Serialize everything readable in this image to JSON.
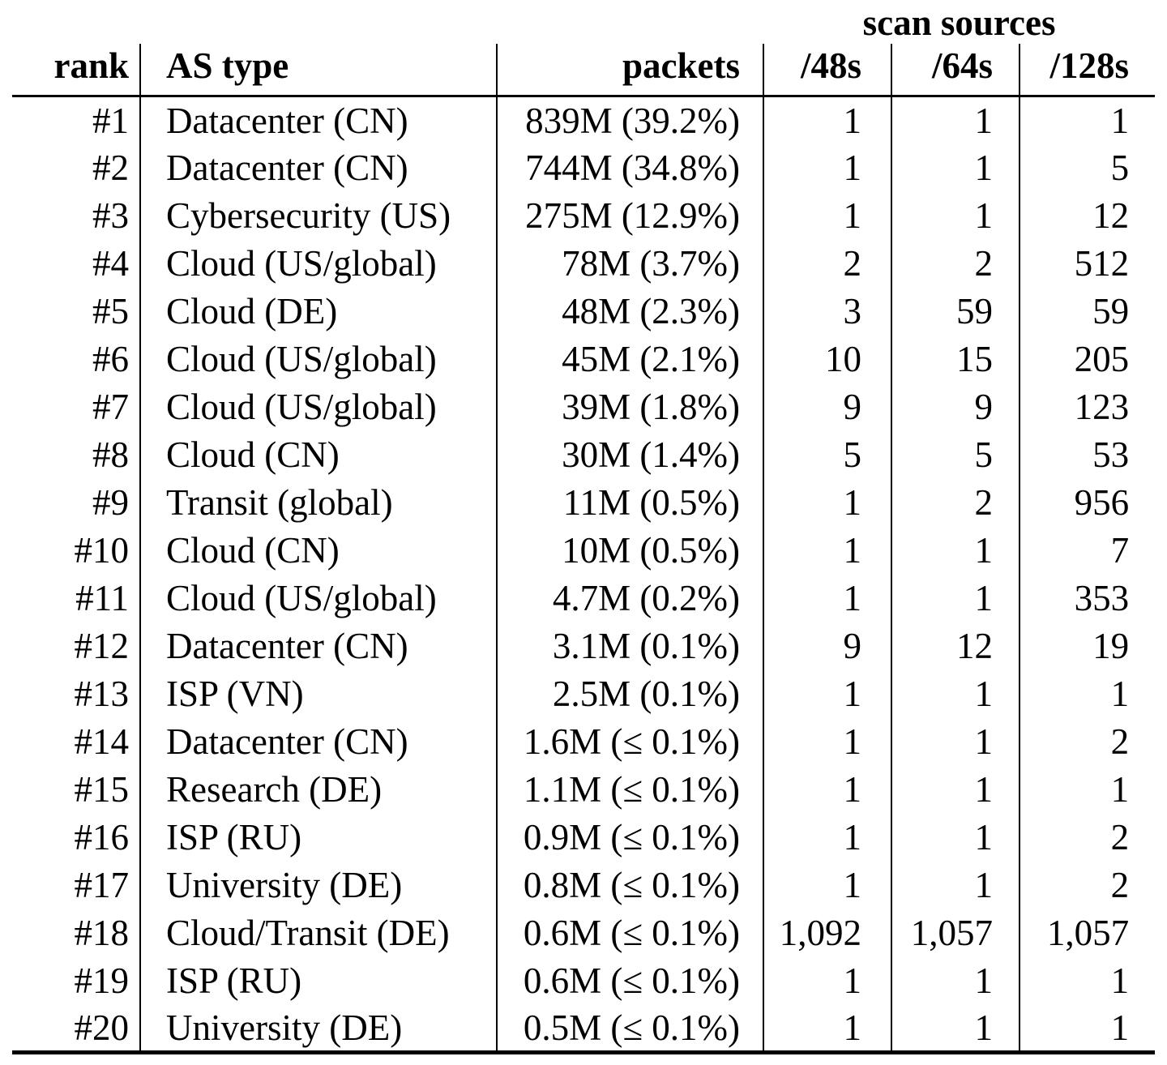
{
  "table": {
    "span_header": "scan sources",
    "columns": [
      "rank",
      "AS type",
      "packets",
      "/48s",
      "/64s",
      "/128s"
    ],
    "rows": [
      [
        "#1",
        "Datacenter (CN)",
        "839M (39.2%)",
        "1",
        "1",
        "1"
      ],
      [
        "#2",
        "Datacenter (CN)",
        "744M (34.8%)",
        "1",
        "1",
        "5"
      ],
      [
        "#3",
        "Cybersecurity (US)",
        "275M (12.9%)",
        "1",
        "1",
        "12"
      ],
      [
        "#4",
        "Cloud (US/global)",
        "78M (3.7%)",
        "2",
        "2",
        "512"
      ],
      [
        "#5",
        "Cloud (DE)",
        "48M (2.3%)",
        "3",
        "59",
        "59"
      ],
      [
        "#6",
        "Cloud (US/global)",
        "45M (2.1%)",
        "10",
        "15",
        "205"
      ],
      [
        "#7",
        "Cloud (US/global)",
        "39M (1.8%)",
        "9",
        "9",
        "123"
      ],
      [
        "#8",
        "Cloud (CN)",
        "30M (1.4%)",
        "5",
        "5",
        "53"
      ],
      [
        "#9",
        "Transit (global)",
        "11M (0.5%)",
        "1",
        "2",
        "956"
      ],
      [
        "#10",
        "Cloud (CN)",
        "10M (0.5%)",
        "1",
        "1",
        "7"
      ],
      [
        "#11",
        "Cloud (US/global)",
        "4.7M (0.2%)",
        "1",
        "1",
        "353"
      ],
      [
        "#12",
        "Datacenter (CN)",
        "3.1M (0.1%)",
        "9",
        "12",
        "19"
      ],
      [
        "#13",
        "ISP (VN)",
        "2.5M (0.1%)",
        "1",
        "1",
        "1"
      ],
      [
        "#14",
        "Datacenter (CN)",
        "1.6M (≤ 0.1%)",
        "1",
        "1",
        "2"
      ],
      [
        "#15",
        "Research (DE)",
        "1.1M (≤ 0.1%)",
        "1",
        "1",
        "1"
      ],
      [
        "#16",
        "ISP (RU)",
        "0.9M (≤ 0.1%)",
        "1",
        "1",
        "2"
      ],
      [
        "#17",
        "University (DE)",
        "0.8M (≤ 0.1%)",
        "1",
        "1",
        "2"
      ],
      [
        "#18",
        "Cloud/Transit (DE)",
        "0.6M (≤ 0.1%)",
        "1,092",
        "1,057",
        "1,057"
      ],
      [
        "#19",
        "ISP (RU)",
        "0.6M (≤ 0.1%)",
        "1",
        "1",
        "1"
      ],
      [
        "#20",
        "University (DE)",
        "0.5M (≤ 0.1%)",
        "1",
        "1",
        "1"
      ]
    ]
  }
}
